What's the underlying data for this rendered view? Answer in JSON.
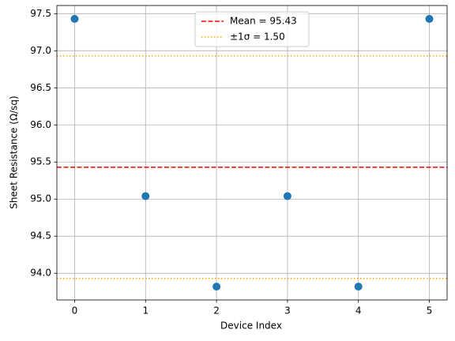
{
  "chart_data": {
    "type": "scatter",
    "x_label": "Device Index",
    "y_label": "Sheet Resistance (Ω/sq)",
    "series": [
      {
        "color": "#1f77b4",
        "x": [
          0,
          1,
          2,
          3,
          4,
          5
        ],
        "values": [
          97.43,
          95.04,
          93.82,
          95.04,
          93.82,
          97.43
        ]
      }
    ],
    "reference_lines": [
      {
        "name": "Mean = 95.43",
        "values": [
          95.43
        ],
        "color": "#ff0000",
        "style": "dashed"
      },
      {
        "name": "±1σ = 1.50",
        "values": [
          96.93,
          93.93
        ],
        "color": "#ffa500",
        "style": "dotted"
      }
    ],
    "xlim": [
      -0.25,
      5.25
    ],
    "xticks": [
      0,
      1,
      2,
      3,
      4,
      5
    ],
    "ylim": [
      93.64,
      97.61
    ],
    "yticks": [
      {
        "value": 94.0,
        "label": "94.0"
      },
      {
        "value": 94.5,
        "label": "94.5"
      },
      {
        "value": 95.0,
        "label": "95.0"
      },
      {
        "value": 95.5,
        "label": "95.5"
      },
      {
        "value": 96.0,
        "label": "96.0"
      },
      {
        "value": 96.5,
        "label": "96.5"
      },
      {
        "value": 97.0,
        "label": "97.0"
      },
      {
        "value": 97.5,
        "label": "97.5"
      }
    ],
    "grid": true,
    "legend_position": "upper center"
  }
}
